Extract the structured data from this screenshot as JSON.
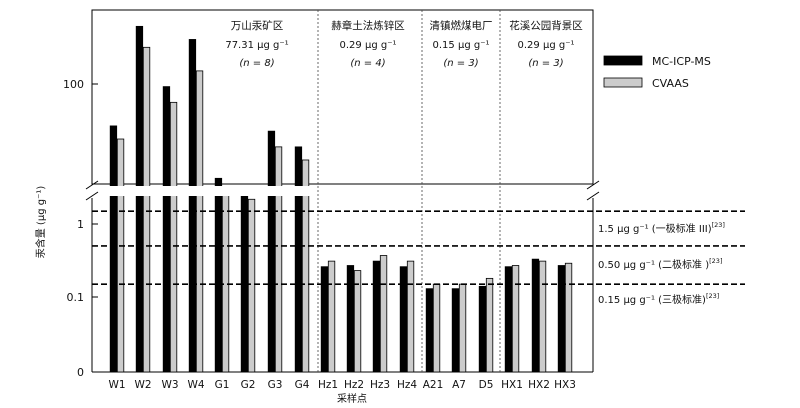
{
  "chart_data": {
    "type": "bar",
    "ylabel": "汞含量 (μg g⁻¹)",
    "xlabel": "采样点",
    "categories": [
      "W1",
      "W2",
      "W3",
      "W4",
      "G1",
      "G2",
      "G3",
      "G4",
      "Hz1",
      "Hz2",
      "Hz3",
      "Hz4",
      "A21",
      "A7",
      "D5",
      "HX1",
      "HX2",
      "HX3"
    ],
    "series": [
      {
        "name": "MC-ICP-MS",
        "color": "#000000",
        "values": [
          84,
          122,
          99,
          117,
          64,
          58,
          82,
          76,
          0.26,
          0.27,
          0.31,
          0.26,
          0.13,
          0.13,
          0.14,
          0.26,
          0.33,
          0.27
        ]
      },
      {
        "name": "CVAAS",
        "color": "#cccccc",
        "values": [
          79,
          114,
          93,
          105,
          59,
          56,
          76,
          71,
          0.31,
          0.23,
          0.37,
          0.31,
          0.15,
          0.15,
          0.18,
          0.27,
          0.31,
          0.29
        ]
      }
    ],
    "upper_axis": {
      "scale": "linear",
      "ticks": [
        "100"
      ]
    },
    "lower_axis": {
      "scale": "log",
      "ticks": [
        "1",
        "0.1",
        "0"
      ]
    },
    "groups": [
      {
        "name": "万山汞矿区",
        "value": "77.31 μg g⁻¹",
        "n": "(n = 8)"
      },
      {
        "name": "赫章土法炼锌区",
        "value": "0.29 μg g⁻¹",
        "n": "(n = 4)"
      },
      {
        "name": "清镇燃煤电厂",
        "value": "0.15 μg g⁻¹",
        "n": "(n = 3)"
      },
      {
        "name": "花溪公园背景区",
        "value": "0.29 μg g⁻¹",
        "n": "(n = 3)"
      }
    ],
    "thresholds": [
      {
        "value": 1.5,
        "label": "1.5 μg g⁻¹ (一极标准 III)",
        "ref": "[23]"
      },
      {
        "value": 0.5,
        "label": "0.50 μg g⁻¹ (二极标准 )",
        "ref": "[23]"
      },
      {
        "value": 0.15,
        "label": "0.15 μg g⁻¹ (三极标准)",
        "ref": "[23]"
      }
    ],
    "legend_position": "right"
  }
}
